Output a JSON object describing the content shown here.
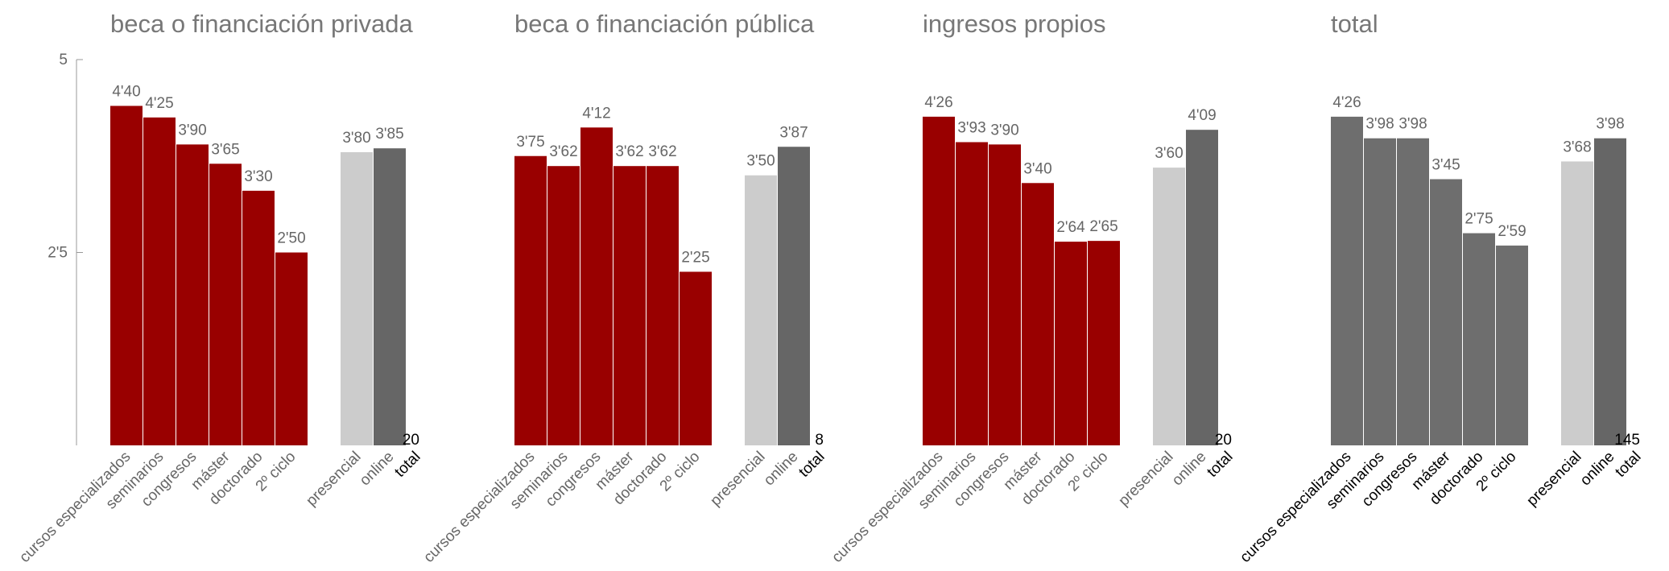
{
  "chart_data": [
    {
      "type": "bar",
      "title": "beca o financiación privada",
      "categories": [
        "cursos especializados",
        "seminarios",
        "congresos",
        "máster",
        "doctorado",
        "2º ciclo",
        "presencial",
        "online"
      ],
      "values": [
        4.4,
        4.25,
        3.9,
        3.65,
        3.3,
        2.5,
        3.8,
        3.85
      ],
      "value_labels": [
        "4'40",
        "4'25",
        "3'90",
        "3'65",
        "3'30",
        "2'50",
        "3'80",
        "3'85"
      ],
      "colors": [
        "#990000",
        "#990000",
        "#990000",
        "#990000",
        "#990000",
        "#990000",
        "#cccccc",
        "#666666"
      ],
      "label_color": "#666666",
      "total_label": "total",
      "total": 20,
      "ylim": [
        0,
        5
      ],
      "yticks": [
        5,
        {
          "value": 2.5,
          "label": "2'5"
        }
      ]
    },
    {
      "type": "bar",
      "title": "beca o financiación pública",
      "categories": [
        "cursos especializados",
        "seminarios",
        "congresos",
        "máster",
        "doctorado",
        "2º ciclo",
        "presencial",
        "online"
      ],
      "values": [
        3.75,
        3.62,
        4.12,
        3.62,
        3.62,
        2.25,
        3.5,
        3.87
      ],
      "value_labels": [
        "3'75",
        "3'62",
        "4'12",
        "3'62",
        "3'62",
        "2'25",
        "3'50",
        "3'87"
      ],
      "colors": [
        "#990000",
        "#990000",
        "#990000",
        "#990000",
        "#990000",
        "#990000",
        "#cccccc",
        "#666666"
      ],
      "label_color": "#666666",
      "total_label": "total",
      "total": 8,
      "ylim": [
        0,
        5
      ]
    },
    {
      "type": "bar",
      "title": "ingresos propios",
      "categories": [
        "cursos especializados",
        "seminarios",
        "congresos",
        "máster",
        "doctorado",
        "2º ciclo",
        "presencial",
        "online"
      ],
      "values": [
        4.26,
        3.93,
        3.9,
        3.4,
        2.64,
        2.65,
        3.6,
        4.09
      ],
      "value_labels": [
        "4'26",
        "3'93",
        "3'90",
        "3'40",
        "2'64",
        "2'65",
        "3'60",
        "4'09"
      ],
      "colors": [
        "#990000",
        "#990000",
        "#990000",
        "#990000",
        "#990000",
        "#990000",
        "#cccccc",
        "#666666"
      ],
      "label_color": "#666666",
      "total_label": "total",
      "total": 20,
      "ylim": [
        0,
        5
      ]
    },
    {
      "type": "bar",
      "title": "total",
      "categories": [
        "cursos especializados",
        "seminarios",
        "congresos",
        "máster",
        "doctorado",
        "2º ciclo",
        "presencial",
        "online"
      ],
      "values": [
        4.26,
        3.98,
        3.98,
        3.45,
        2.75,
        2.59,
        3.68,
        3.98
      ],
      "value_labels": [
        "4'26",
        "3'98",
        "3'98",
        "3'45",
        "2'75",
        "2'59",
        "3'68",
        "3'98"
      ],
      "colors": [
        "#6e6e6e",
        "#6e6e6e",
        "#6e6e6e",
        "#6e6e6e",
        "#6e6e6e",
        "#6e6e6e",
        "#cccccc",
        "#666666"
      ],
      "label_color": "#000000",
      "total_label": "total",
      "total": 145,
      "ylim": [
        0,
        5
      ]
    }
  ]
}
